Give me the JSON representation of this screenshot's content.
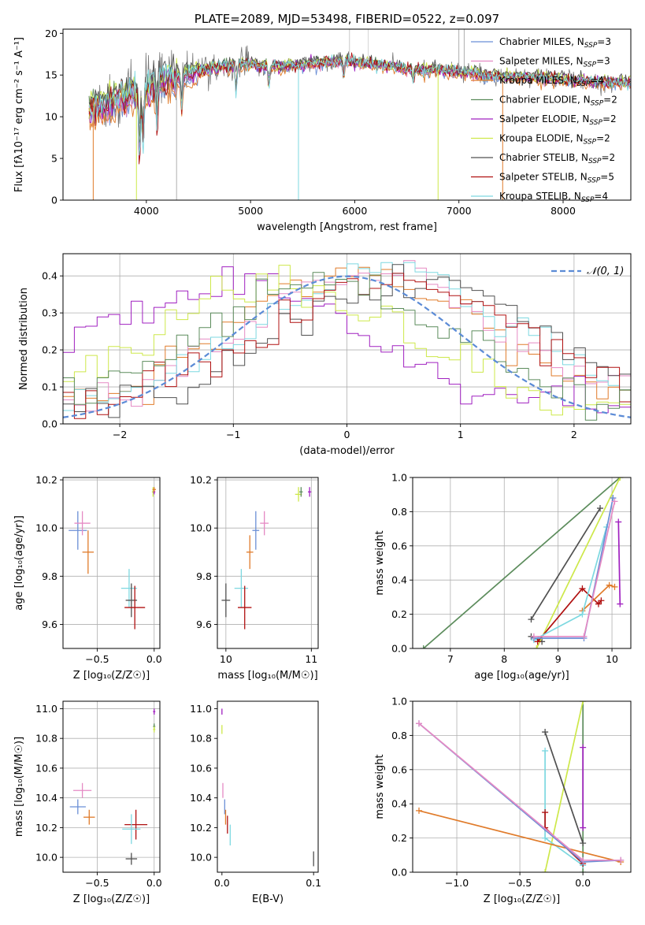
{
  "chart_data": [
    {
      "id": "spectrum",
      "type": "line",
      "title": "PLATE=2089, MJD=53498, FIBERID=0522, z=0.097",
      "xlabel": "wavelength [Angstrom, rest frame]",
      "ylabel": "Flux [fλ10⁻¹⁷ erg cm⁻² s⁻¹ A⁻¹]",
      "xlim": [
        3200,
        8650
      ],
      "ylim": [
        0,
        20.5
      ],
      "xticks": [
        4000,
        5000,
        6000,
        7000,
        8000
      ],
      "yticks": [
        0,
        5,
        10,
        15,
        20
      ],
      "grid": false,
      "legend_position": "top-right",
      "series": [
        {
          "name": "Chabrier MILES, N_SSP=3",
          "color": "#6b8fd6"
        },
        {
          "name": "Salpeter MILES, N_SSP=3",
          "color": "#e58ac4"
        },
        {
          "name": "Kroupa MILES, N_SSP=4",
          "color": "#e07b2a"
        },
        {
          "name": "Chabrier ELODIE, N_SSP=2",
          "color": "#5c8c5c"
        },
        {
          "name": "Salpeter ELODIE, N_SSP=2",
          "color": "#a020c0"
        },
        {
          "name": "Kroupa ELODIE, N_SSP=2",
          "color": "#cde84a"
        },
        {
          "name": "Chabrier STELIB, N_SSP=2",
          "color": "#505050"
        },
        {
          "name": "Salpeter STELIB, N_SSP=5",
          "color": "#b01010"
        },
        {
          "name": "Kroupa STELIB, N_SSP=4",
          "color": "#7dd8e0"
        }
      ],
      "continuum": {
        "x": [
          3450,
          3600,
          3800,
          3950,
          4100,
          4300,
          4500,
          4700,
          4900,
          5100,
          5300,
          5600,
          5900,
          6200,
          6500,
          6800,
          7100,
          7400,
          7700,
          8000,
          8300,
          8650
        ],
        "y": [
          11,
          11.5,
          12.5,
          13,
          14.2,
          14.8,
          15.5,
          16,
          16.3,
          16.2,
          16,
          16.4,
          16.8,
          16.3,
          15.8,
          15.6,
          15.3,
          14.8,
          14.8,
          14.5,
          14.2,
          14.0
        ]
      },
      "observed_color": "#777777"
    },
    {
      "id": "residuals",
      "type": "line",
      "xlabel": "(data-model)/error",
      "ylabel": "Normed distribution",
      "xlim": [
        -2.5,
        2.5
      ],
      "ylim": [
        0,
        0.46
      ],
      "xticks": [
        -2,
        -1,
        0,
        1,
        2
      ],
      "yticks": [
        0.0,
        0.1,
        0.2,
        0.3,
        0.4
      ],
      "grid": true,
      "legend_position": "top-right",
      "legend": [
        {
          "name": "𝒩(0, 1)",
          "color": "#5b8bd6",
          "dash": true
        }
      ],
      "bin_width": 0.1,
      "series": [
        {
          "color": "#e07b2a",
          "peak": 0.1,
          "scale": 1.0
        },
        {
          "color": "#e58ac4",
          "peak": 0.25,
          "scale": 1.0
        },
        {
          "color": "#7dd8e0",
          "peak": 0.35,
          "scale": 1.03
        },
        {
          "color": "#a020c0",
          "peak": -0.9,
          "scale": 0.92
        },
        {
          "color": "#cde84a",
          "peak": -0.6,
          "scale": 0.94
        },
        {
          "color": "#505050",
          "peak": 0.6,
          "scale": 0.96
        },
        {
          "color": "#b01010",
          "peak": 0.45,
          "scale": 0.98
        },
        {
          "color": "#5c8c5c",
          "peak": -0.2,
          "scale": 0.93
        }
      ]
    },
    {
      "id": "age_vs_Z",
      "type": "scatter",
      "xlabel": "Z [log₁₀(Z/Z☉)]",
      "ylabel": "age  [log₁₀(age/yr)]",
      "xlim": [
        -0.8,
        0.05
      ],
      "ylim": [
        9.5,
        10.21
      ],
      "xticks": [
        -0.5,
        0.0
      ],
      "yticks": [
        9.6,
        9.8,
        10.0,
        10.2
      ],
      "grid": true,
      "points": [
        {
          "color": "#6b8fd6",
          "x": -0.67,
          "y": 9.99,
          "xerr": 0.08,
          "yerr": 0.08
        },
        {
          "color": "#e58ac4",
          "x": -0.63,
          "y": 10.02,
          "xerr": 0.07,
          "yerr": 0.05
        },
        {
          "color": "#e07b2a",
          "x": -0.58,
          "y": 9.9,
          "xerr": 0.05,
          "yerr": 0.09
        },
        {
          "color": "#7dd8e0",
          "x": -0.22,
          "y": 9.75,
          "xerr": 0.07,
          "yerr": 0.08
        },
        {
          "color": "#505050",
          "x": -0.2,
          "y": 9.7,
          "xerr": 0.05,
          "yerr": 0.07
        },
        {
          "color": "#b01010",
          "x": -0.17,
          "y": 9.67,
          "xerr": 0.09,
          "yerr": 0.09
        },
        {
          "color": "#cde84a",
          "x": -0.01,
          "y": 10.15,
          "xerr": 0.01,
          "yerr": 0.02
        },
        {
          "color": "#a020c0",
          "x": 0.0,
          "y": 10.15,
          "xerr": 0.01,
          "yerr": 0.01
        },
        {
          "color": "#e07b2a",
          "x": 0.0,
          "y": 10.16,
          "xerr": 0.015,
          "yerr": 0.01
        }
      ]
    },
    {
      "id": "age_vs_mass",
      "type": "scatter",
      "xlabel": "mass [log₁₀(M/M☉)]",
      "ylabel": "",
      "xlim": [
        9.9,
        11.08
      ],
      "ylim": [
        9.5,
        10.21
      ],
      "xticks": [
        10,
        11
      ],
      "yticks": [
        9.6,
        9.8,
        10.0,
        10.2
      ],
      "grid": true,
      "points": [
        {
          "color": "#505050",
          "x": 10.0,
          "y": 9.7,
          "xerr": 0.05,
          "yerr": 0.07
        },
        {
          "color": "#7dd8e0",
          "x": 10.18,
          "y": 9.75,
          "xerr": 0.08,
          "yerr": 0.08
        },
        {
          "color": "#b01010",
          "x": 10.22,
          "y": 9.67,
          "xerr": 0.08,
          "yerr": 0.09
        },
        {
          "color": "#e07b2a",
          "x": 10.28,
          "y": 9.9,
          "xerr": 0.04,
          "yerr": 0.07
        },
        {
          "color": "#6b8fd6",
          "x": 10.35,
          "y": 9.99,
          "xerr": 0.04,
          "yerr": 0.08
        },
        {
          "color": "#e58ac4",
          "x": 10.45,
          "y": 10.02,
          "xerr": 0.05,
          "yerr": 0.05
        },
        {
          "color": "#cde84a",
          "x": 10.85,
          "y": 10.14,
          "xerr": 0.04,
          "yerr": 0.03
        },
        {
          "color": "#a020c0",
          "x": 10.98,
          "y": 10.15,
          "xerr": 0.02,
          "yerr": 0.02
        },
        {
          "color": "#5c8c5c",
          "x": 10.88,
          "y": 10.15,
          "xerr": 0.02,
          "yerr": 0.02
        }
      ]
    },
    {
      "id": "massweight_vs_age",
      "type": "line",
      "xlabel": "age  [log₁₀(age/yr)]",
      "ylabel": "mass weight",
      "xlim": [
        6.3,
        10.35
      ],
      "ylim": [
        0,
        1.0
      ],
      "xticks": [
        7,
        8,
        9,
        10
      ],
      "yticks": [
        0.0,
        0.2,
        0.4,
        0.6,
        0.8,
        1.0
      ],
      "grid": true,
      "series": [
        {
          "color": "#5c8c5c",
          "x": [
            6.5,
            10.15
          ],
          "y": [
            0.0,
            1.0
          ]
        },
        {
          "color": "#505050",
          "x": [
            8.5,
            9.78
          ],
          "y": [
            0.17,
            0.82
          ]
        },
        {
          "color": "#505050",
          "x": [
            8.5,
            8.7
          ],
          "y": [
            0.07,
            0.04
          ]
        },
        {
          "color": "#cde84a",
          "x": [
            8.6,
            10.15
          ],
          "y": [
            0.0,
            1.0
          ]
        },
        {
          "color": "#b01010",
          "x": [
            8.62,
            9.45,
            9.75,
            9.8
          ],
          "y": [
            0.04,
            0.35,
            0.26,
            0.28
          ]
        },
        {
          "color": "#e07b2a",
          "x": [
            9.45,
            9.95,
            10.05
          ],
          "y": [
            0.22,
            0.37,
            0.36
          ]
        },
        {
          "color": "#a020c0",
          "x": [
            10.12,
            10.15
          ],
          "y": [
            0.74,
            0.26
          ]
        },
        {
          "color": "#7dd8e0",
          "x": [
            8.55,
            9.45,
            9.9
          ],
          "y": [
            0.05,
            0.2,
            0.71
          ]
        },
        {
          "color": "#6b8fd6",
          "x": [
            8.55,
            9.48,
            10.02
          ],
          "y": [
            0.06,
            0.06,
            0.88
          ]
        },
        {
          "color": "#e58ac4",
          "x": [
            8.55,
            9.48,
            10.05
          ],
          "y": [
            0.07,
            0.07,
            0.86
          ]
        }
      ]
    },
    {
      "id": "mass_vs_Z",
      "type": "scatter",
      "xlabel": "Z [log₁₀(Z/Z☉)]",
      "ylabel": "mass [log₁₀(M/M☉)]",
      "xlim": [
        -0.8,
        0.05
      ],
      "ylim": [
        9.9,
        11.05
      ],
      "xticks": [
        -0.5,
        0.0
      ],
      "yticks": [
        10.0,
        10.2,
        10.4,
        10.6,
        10.8,
        11.0
      ],
      "grid": true,
      "points": [
        {
          "color": "#e58ac4",
          "x": -0.63,
          "y": 10.45,
          "xerr": 0.08,
          "yerr": 0.05
        },
        {
          "color": "#6b8fd6",
          "x": -0.67,
          "y": 10.34,
          "xerr": 0.07,
          "yerr": 0.05
        },
        {
          "color": "#e07b2a",
          "x": -0.57,
          "y": 10.27,
          "xerr": 0.05,
          "yerr": 0.05
        },
        {
          "color": "#b01010",
          "x": -0.16,
          "y": 10.22,
          "xerr": 0.1,
          "yerr": 0.1
        },
        {
          "color": "#7dd8e0",
          "x": -0.2,
          "y": 10.19,
          "xerr": 0.08,
          "yerr": 0.1
        },
        {
          "color": "#505050",
          "x": -0.2,
          "y": 9.99,
          "xerr": 0.05,
          "yerr": 0.04
        },
        {
          "color": "#a020c0",
          "x": 0.0,
          "y": 10.98,
          "xerr": 0.01,
          "yerr": 0.02
        },
        {
          "color": "#5c8c5c",
          "x": 0.0,
          "y": 10.88,
          "xerr": 0.01,
          "yerr": 0.02
        },
        {
          "color": "#cde84a",
          "x": 0.0,
          "y": 10.86,
          "xerr": 0.01,
          "yerr": 0.02
        }
      ]
    },
    {
      "id": "mass_vs_ebv",
      "type": "scatter",
      "xlabel": "E(B-V)",
      "ylabel": "",
      "xlim": [
        -0.005,
        0.105
      ],
      "ylim": [
        9.9,
        11.05
      ],
      "xticks": [
        0.0,
        0.1
      ],
      "yticks": [
        10.0,
        10.2,
        10.4,
        10.6,
        10.8,
        11.0
      ],
      "grid": false,
      "points": [
        {
          "color": "#a020c0",
          "x": 0.0,
          "y": 10.98,
          "xerr": 0,
          "yerr": 0.02
        },
        {
          "color": "#cde84a",
          "x": 0.0,
          "y": 10.86,
          "xerr": 0,
          "yerr": 0.03
        },
        {
          "color": "#e58ac4",
          "x": 0.001,
          "y": 10.45,
          "xerr": 0,
          "yerr": 0.05
        },
        {
          "color": "#6b8fd6",
          "x": 0.003,
          "y": 10.34,
          "xerr": 0,
          "yerr": 0.05
        },
        {
          "color": "#e07b2a",
          "x": 0.004,
          "y": 10.27,
          "xerr": 0,
          "yerr": 0.05
        },
        {
          "color": "#b01010",
          "x": 0.006,
          "y": 10.22,
          "xerr": 0,
          "yerr": 0.06
        },
        {
          "color": "#7dd8e0",
          "x": 0.009,
          "y": 10.15,
          "xerr": 0,
          "yerr": 0.07
        },
        {
          "color": "#505050",
          "x": 0.1,
          "y": 9.99,
          "xerr": 0,
          "yerr": 0.05
        }
      ]
    },
    {
      "id": "massweight_vs_Z",
      "type": "line",
      "xlabel": "Z [log₁₀(Z/Z☉)]",
      "ylabel": "mass weight",
      "xlim": [
        -1.35,
        0.38
      ],
      "ylim": [
        0,
        1.0
      ],
      "xticks": [
        -1.0,
        -0.5,
        0.0
      ],
      "yticks": [
        0.0,
        0.2,
        0.4,
        0.6,
        0.8,
        1.0
      ],
      "grid": true,
      "series": [
        {
          "color": "#5c8c5c",
          "x": [
            0.0,
            0.0
          ],
          "y": [
            0.0,
            1.0
          ]
        },
        {
          "color": "#cde84a",
          "x": [
            -0.3,
            0.0
          ],
          "y": [
            0.0,
            1.0
          ]
        },
        {
          "color": "#505050",
          "x": [
            -0.3,
            0.0
          ],
          "y": [
            0.82,
            0.17
          ]
        },
        {
          "color": "#a020c0",
          "x": [
            0.0,
            0.0
          ],
          "y": [
            0.73,
            0.26
          ]
        },
        {
          "color": "#7dd8e0",
          "x": [
            -0.3,
            -0.3,
            0.0
          ],
          "y": [
            0.71,
            0.2,
            0.04
          ]
        },
        {
          "color": "#b01010",
          "x": [
            -0.3,
            -0.3,
            0.0
          ],
          "y": [
            0.35,
            0.26,
            0.05
          ]
        },
        {
          "color": "#e07b2a",
          "x": [
            -1.3,
            0.3
          ],
          "y": [
            0.36,
            0.06
          ]
        },
        {
          "color": "#6b8fd6",
          "x": [
            -1.3,
            0.0,
            0.3
          ],
          "y": [
            0.87,
            0.06,
            0.07
          ]
        },
        {
          "color": "#e58ac4",
          "x": [
            -1.3,
            0.0,
            0.3
          ],
          "y": [
            0.87,
            0.07,
            0.07
          ]
        }
      ]
    }
  ]
}
